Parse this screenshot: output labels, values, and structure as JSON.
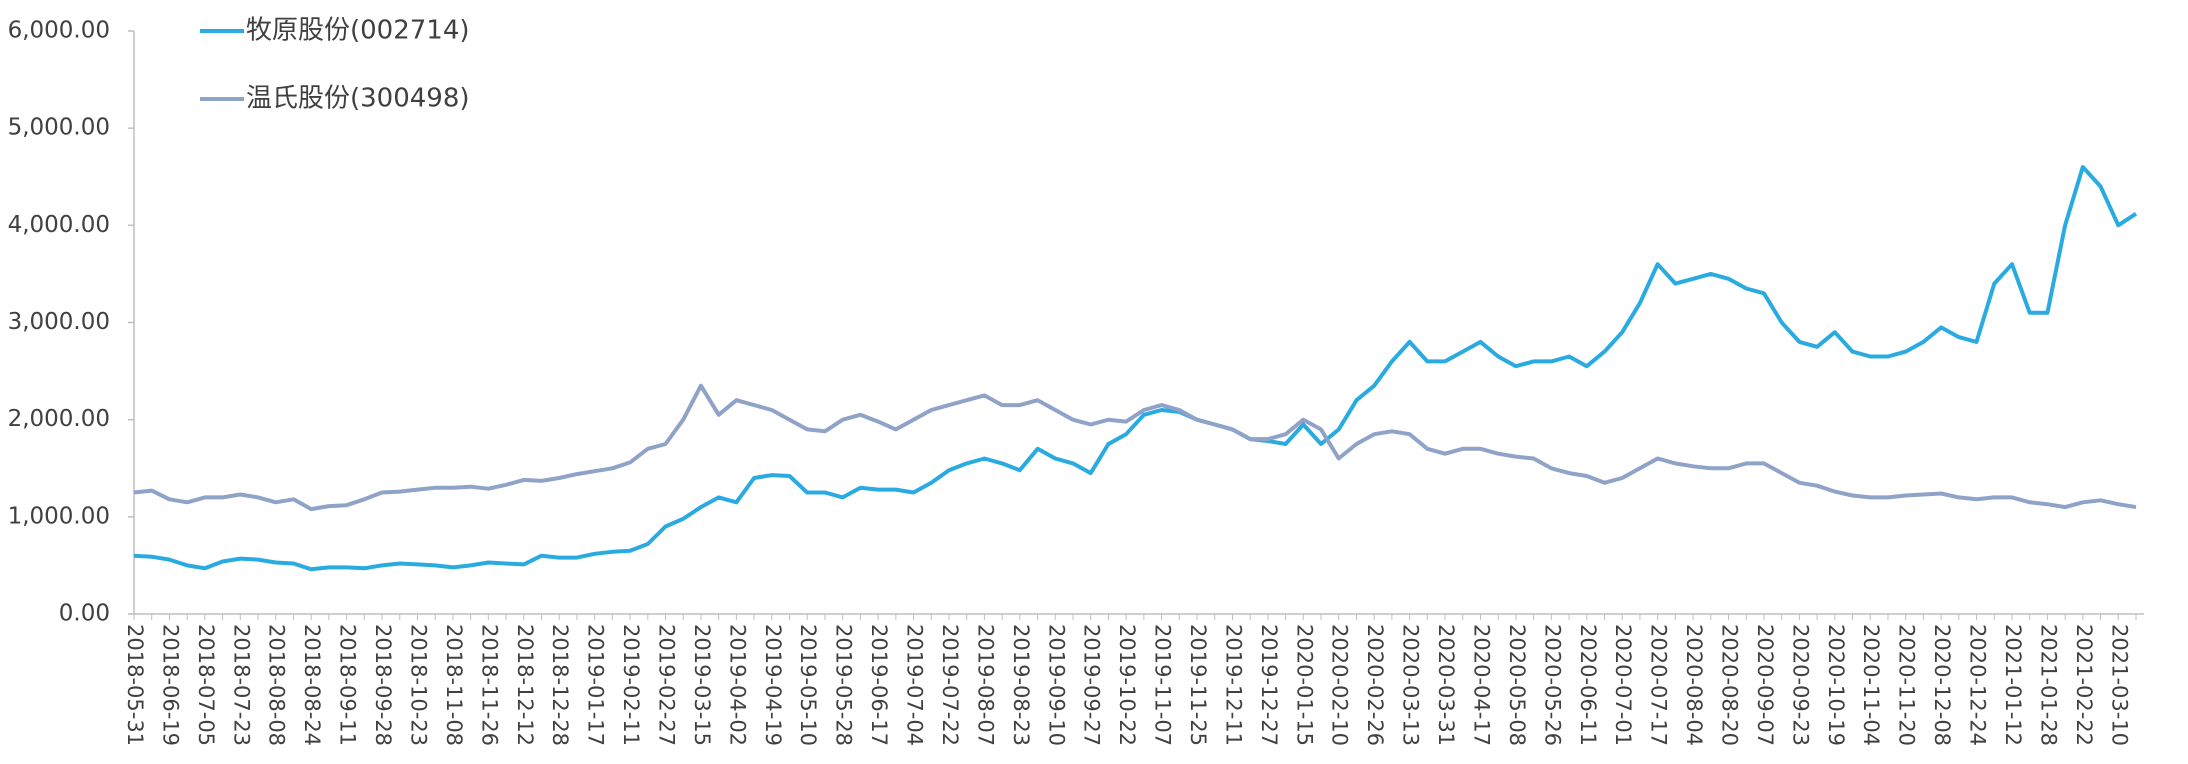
{
  "chart_data": {
    "type": "line",
    "categories": [
      "2018-05-31",
      null,
      "2018-06-19",
      null,
      "2018-07-05",
      null,
      "2018-07-23",
      null,
      "2018-08-08",
      null,
      "2018-08-24",
      null,
      "2018-09-11",
      null,
      "2018-09-28",
      null,
      "2018-10-23",
      null,
      "2018-11-08",
      null,
      "2018-11-26",
      null,
      "2018-12-12",
      null,
      "2018-12-28",
      null,
      "2019-01-17",
      null,
      "2019-02-11",
      null,
      "2019-02-27",
      null,
      "2019-03-15",
      null,
      "2019-04-02",
      null,
      "2019-04-19",
      null,
      "2019-05-10",
      null,
      "2019-05-28",
      null,
      "2019-06-17",
      null,
      "2019-07-04",
      null,
      "2019-07-22",
      null,
      "2019-08-07",
      null,
      "2019-08-23",
      null,
      "2019-09-10",
      null,
      "2019-09-27",
      null,
      "2019-10-22",
      null,
      "2019-11-07",
      null,
      "2019-11-25",
      null,
      "2019-12-11",
      null,
      "2019-12-27",
      null,
      "2020-01-15",
      null,
      "2020-02-10",
      null,
      "2020-02-26",
      null,
      "2020-03-13",
      null,
      "2020-03-31",
      null,
      "2020-04-17",
      null,
      "2020-05-08",
      null,
      "2020-05-26",
      null,
      "2020-06-11",
      null,
      "2020-07-01",
      null,
      "2020-07-17",
      null,
      "2020-08-04",
      null,
      "2020-08-20",
      null,
      "2020-09-07",
      null,
      "2020-09-23",
      null,
      "2020-10-19",
      null,
      "2020-11-04",
      null,
      "2020-11-20",
      null,
      "2020-12-08",
      null,
      "2020-12-24",
      null,
      "2021-01-12",
      null,
      "2021-01-28",
      null,
      "2021-02-22",
      null,
      "2021-03-10",
      null
    ],
    "series": [
      {
        "name": "牧原股份(002714)",
        "color": "#29abe2",
        "values": [
          600,
          590,
          560,
          500,
          470,
          540,
          570,
          560,
          530,
          520,
          460,
          480,
          480,
          470,
          500,
          520,
          510,
          500,
          480,
          500,
          530,
          520,
          510,
          600,
          580,
          580,
          620,
          640,
          650,
          720,
          900,
          980,
          1100,
          1200,
          1150,
          1400,
          1430,
          1420,
          1250,
          1250,
          1200,
          1300,
          1280,
          1280,
          1250,
          1350,
          1480,
          1550,
          1600,
          1550,
          1480,
          1700,
          1600,
          1550,
          1450,
          1750,
          1850,
          2050,
          2100,
          2080,
          2000,
          1950,
          1900,
          1800,
          1780,
          1750,
          1950,
          1750,
          1900,
          2200,
          2350,
          2600,
          2800,
          2600,
          2600,
          2700,
          2800,
          2650,
          2550,
          2600,
          2600,
          2650,
          2550,
          2700,
          2900,
          3200,
          3600,
          3400,
          3450,
          3500,
          3450,
          3350,
          3300,
          3000,
          2800,
          2750,
          2900,
          2700,
          2650,
          2650,
          2700,
          2800,
          2950,
          2850,
          2800,
          3400,
          3600,
          3100,
          3100,
          4000,
          4600,
          4400,
          4000,
          4120
        ]
      },
      {
        "name": "温氏股份(300498)",
        "color": "#8fa2c8",
        "values": [
          1250,
          1270,
          1180,
          1150,
          1200,
          1200,
          1230,
          1200,
          1150,
          1180,
          1080,
          1110,
          1120,
          1180,
          1250,
          1260,
          1280,
          1300,
          1300,
          1310,
          1290,
          1330,
          1380,
          1370,
          1400,
          1440,
          1470,
          1500,
          1560,
          1700,
          1750,
          2000,
          2350,
          2050,
          2200,
          2150,
          2100,
          2000,
          1900,
          1880,
          2000,
          2050,
          1980,
          1900,
          2000,
          2100,
          2150,
          2200,
          2250,
          2150,
          2150,
          2200,
          2100,
          2000,
          1950,
          2000,
          1980,
          2100,
          2150,
          2100,
          2000,
          1950,
          1900,
          1800,
          1800,
          1850,
          2000,
          1900,
          1600,
          1750,
          1850,
          1880,
          1850,
          1700,
          1650,
          1700,
          1700,
          1650,
          1620,
          1600,
          1500,
          1450,
          1420,
          1350,
          1400,
          1500,
          1600,
          1550,
          1520,
          1500,
          1500,
          1550,
          1550,
          1450,
          1350,
          1320,
          1260,
          1220,
          1200,
          1200,
          1220,
          1230,
          1240,
          1200,
          1180,
          1200,
          1200,
          1150,
          1130,
          1100,
          1150,
          1170,
          1130,
          1100
        ]
      }
    ],
    "ylim": [
      0,
      6000
    ],
    "yticks": [
      {
        "value": 0,
        "label": "0.00"
      },
      {
        "value": 1000,
        "label": "1,000.00"
      },
      {
        "value": 2000,
        "label": "2,000.00"
      },
      {
        "value": 3000,
        "label": "3,000.00"
      },
      {
        "value": 4000,
        "label": "4,000.00"
      },
      {
        "value": 5000,
        "label": "5,000.00"
      },
      {
        "value": 6000,
        "label": "6,000.00"
      }
    ]
  }
}
